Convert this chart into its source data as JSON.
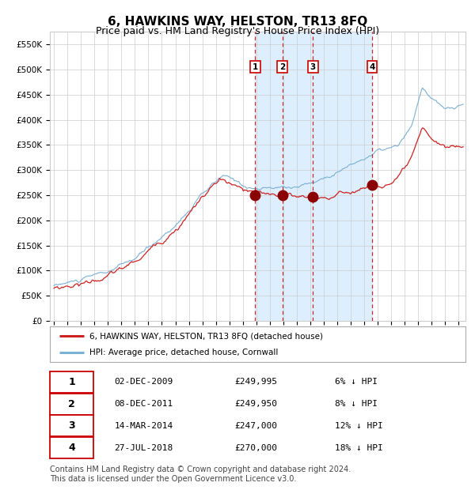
{
  "title": "6, HAWKINS WAY, HELSTON, TR13 8FQ",
  "subtitle": "Price paid vs. HM Land Registry's House Price Index (HPI)",
  "title_fontsize": 11,
  "subtitle_fontsize": 9,
  "ylim": [
    0,
    575000
  ],
  "yticks": [
    0,
    50000,
    100000,
    150000,
    200000,
    250000,
    300000,
    350000,
    400000,
    450000,
    500000,
    550000
  ],
  "ytick_labels": [
    "£0",
    "£50K",
    "£100K",
    "£150K",
    "£200K",
    "£250K",
    "£300K",
    "£350K",
    "£400K",
    "£450K",
    "£500K",
    "£550K"
  ],
  "xlim_start": 1994.7,
  "xlim_end": 2025.5,
  "sale_dates_decimal": [
    2009.92,
    2011.93,
    2014.2,
    2018.57
  ],
  "sale_prices": [
    249995,
    249950,
    247000,
    270000
  ],
  "sale_labels": [
    "1",
    "2",
    "3",
    "4"
  ],
  "shaded_color": "#ddeeff",
  "dashed_line_color": "#cc0000",
  "marker_color": "#8b0000",
  "marker_size": 9,
  "hpi_line_color": "#7ab0d4",
  "price_line_color": "#cc2222",
  "grid_color": "#cccccc",
  "bg_color": "#ffffff",
  "legend_entries": [
    "6, HAWKINS WAY, HELSTON, TR13 8FQ (detached house)",
    "HPI: Average price, detached house, Cornwall"
  ],
  "table_data": [
    [
      "1",
      "02-DEC-2009",
      "£249,995",
      "6% ↓ HPI"
    ],
    [
      "2",
      "08-DEC-2011",
      "£249,950",
      "8% ↓ HPI"
    ],
    [
      "3",
      "14-MAR-2014",
      "£247,000",
      "12% ↓ HPI"
    ],
    [
      "4",
      "27-JUL-2018",
      "£270,000",
      "18% ↓ HPI"
    ]
  ],
  "footnote": "Contains HM Land Registry data © Crown copyright and database right 2024.\nThis data is licensed under the Open Government Licence v3.0.",
  "footnote_fontsize": 7
}
